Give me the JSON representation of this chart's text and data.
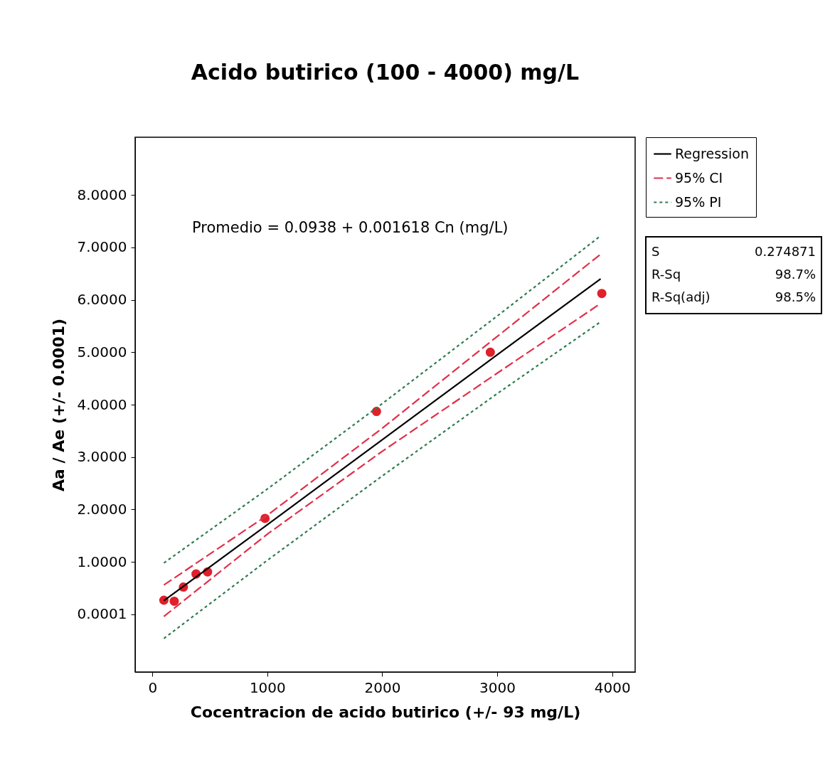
{
  "chart_data": {
    "type": "line",
    "title": "Acido butirico (100 - 4000) mg/L",
    "xlabel": "Cocentracion de acido butirico (+/- 93 mg/L)",
    "ylabel": "Aa / Ae (+/- 0.0001)",
    "xlim": [
      -150,
      4200
    ],
    "xticks": [
      0,
      1000,
      2000,
      3000,
      4000
    ],
    "ylim": [
      -1.1,
      9.1
    ],
    "yticks": [
      0.0001,
      {
        "value": 1,
        "label": "1.0000"
      },
      {
        "value": 2,
        "label": "2.0000"
      },
      {
        "value": 3,
        "label": "3.0000"
      },
      {
        "value": 4,
        "label": "4.0000"
      },
      {
        "value": 5,
        "label": "5.0000"
      },
      {
        "value": 6,
        "label": "6.0000"
      },
      {
        "value": 7,
        "label": "7.0000"
      },
      {
        "value": 8,
        "label": "8.0000"
      }
    ],
    "grid": false,
    "legend": "top right",
    "series": [
      {
        "type": "scatter",
        "color": "#e0202a",
        "marker": "circle",
        "x": [
          100,
          190,
          270,
          380,
          480,
          980,
          1950,
          2940,
          3910
        ],
        "values": [
          0.27,
          0.25,
          0.52,
          0.77,
          0.81,
          1.83,
          3.87,
          5.0,
          6.12
        ]
      },
      {
        "name": "Regression",
        "color": "#000000",
        "line_style": "solid",
        "x": [
          100,
          1000,
          2000,
          3000,
          3900
        ],
        "values": [
          0.26,
          1.71,
          3.33,
          4.95,
          6.4
        ]
      },
      {
        "name": "95% CI",
        "color": "#e0304a",
        "line_style": "dashed",
        "x": [
          100,
          1000,
          2000,
          3000,
          3900
        ],
        "values": [
          0.56,
          1.89,
          3.55,
          5.3,
          6.87
        ]
      },
      {
        "color": "#e0304a",
        "line_style": "dashed",
        "x": [
          100,
          1000,
          2000,
          3000,
          3900
        ],
        "values": [
          -0.04,
          1.53,
          3.11,
          4.6,
          5.93
        ]
      },
      {
        "name": "95% PI",
        "color": "#2e7d4f",
        "line_style": "dotted",
        "x": [
          100,
          1000,
          2000,
          3000,
          3900
        ],
        "values": [
          0.98,
          2.39,
          4.02,
          5.69,
          7.22
        ]
      },
      {
        "color": "#2e7d4f",
        "line_style": "dotted",
        "x": [
          100,
          1000,
          2000,
          3000,
          3900
        ],
        "values": [
          -0.46,
          1.03,
          2.64,
          4.21,
          5.58
        ]
      }
    ],
    "annotations": [
      "Promedio =  0.0938 + 0.001618 Cn (mg/L)",
      "S 0.274871",
      "R-Sq 98.7%",
      "R-Sq(adj) 98.5%"
    ]
  }
}
